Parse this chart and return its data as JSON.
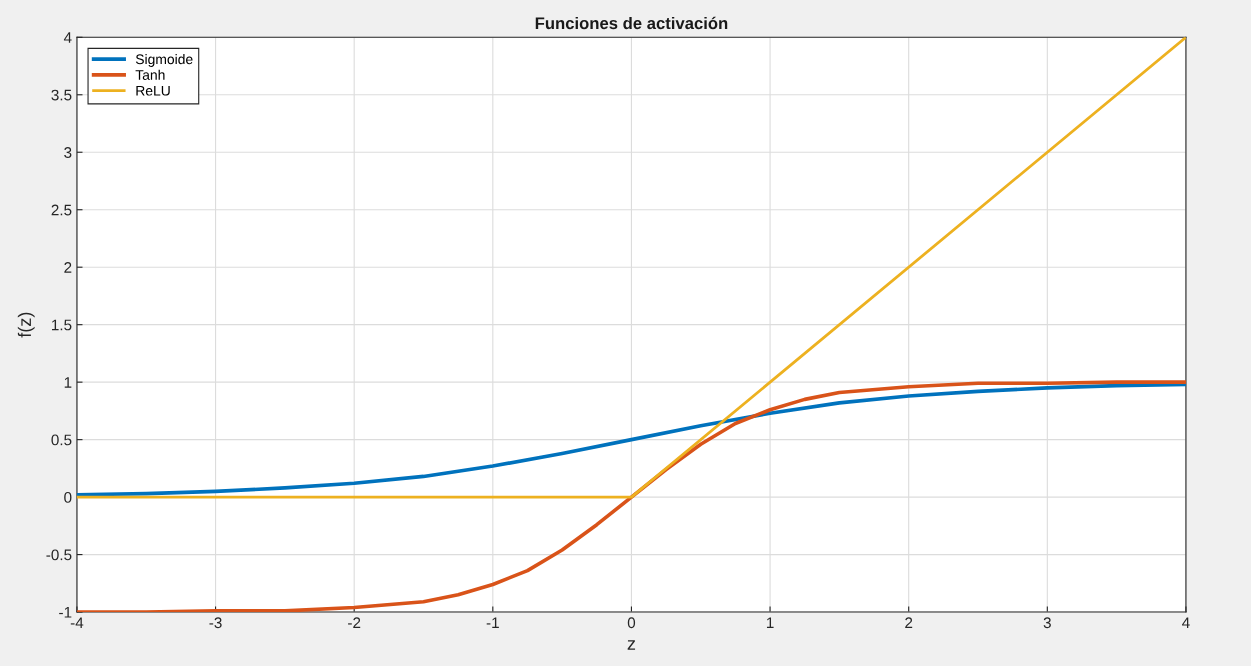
{
  "chart_data": {
    "type": "line",
    "title": "Funciones de activación",
    "xlabel": "z",
    "ylabel": "f(z)",
    "series": [
      {
        "name": "Sigmoide",
        "color": "#0072bd",
        "x": [
          -4,
          -3.5,
          -3,
          -2.5,
          -2,
          -1.5,
          -1,
          -0.5,
          0,
          0.5,
          1,
          1.5,
          2,
          2.5,
          3,
          3.5,
          4
        ],
        "values": [
          0.02,
          0.03,
          0.05,
          0.08,
          0.12,
          0.18,
          0.27,
          0.38,
          0.5,
          0.62,
          0.73,
          0.82,
          0.88,
          0.92,
          0.95,
          0.97,
          0.98
        ]
      },
      {
        "name": "Tanh",
        "color": "#d95319",
        "x": [
          -4,
          -3.5,
          -3,
          -2.5,
          -2,
          -1.5,
          -1.25,
          -1,
          -0.75,
          -0.5,
          -0.25,
          0,
          0.25,
          0.5,
          0.75,
          1,
          1.25,
          1.5,
          2,
          2.5,
          3,
          3.5,
          4
        ],
        "values": [
          -1.0,
          -1.0,
          -0.99,
          -0.99,
          -0.96,
          -0.91,
          -0.85,
          -0.76,
          -0.64,
          -0.46,
          -0.24,
          0,
          0.24,
          0.46,
          0.64,
          0.76,
          0.85,
          0.91,
          0.96,
          0.99,
          0.99,
          1.0,
          1.0
        ]
      },
      {
        "name": "ReLU",
        "color": "#edb120",
        "x": [
          -4,
          0,
          4
        ],
        "values": [
          0,
          0,
          4
        ]
      }
    ],
    "xlim": [
      -4,
      4
    ],
    "ylim": [
      -1,
      4
    ],
    "xticks": [
      -4,
      -3,
      -2,
      -1,
      0,
      1,
      2,
      3,
      4
    ],
    "yticks": [
      -1,
      -0.5,
      0,
      0.5,
      1,
      1.5,
      2,
      2.5,
      3,
      3.5,
      4
    ],
    "grid": true,
    "legend": "top left",
    "marker": "none",
    "line_style": "solid"
  }
}
